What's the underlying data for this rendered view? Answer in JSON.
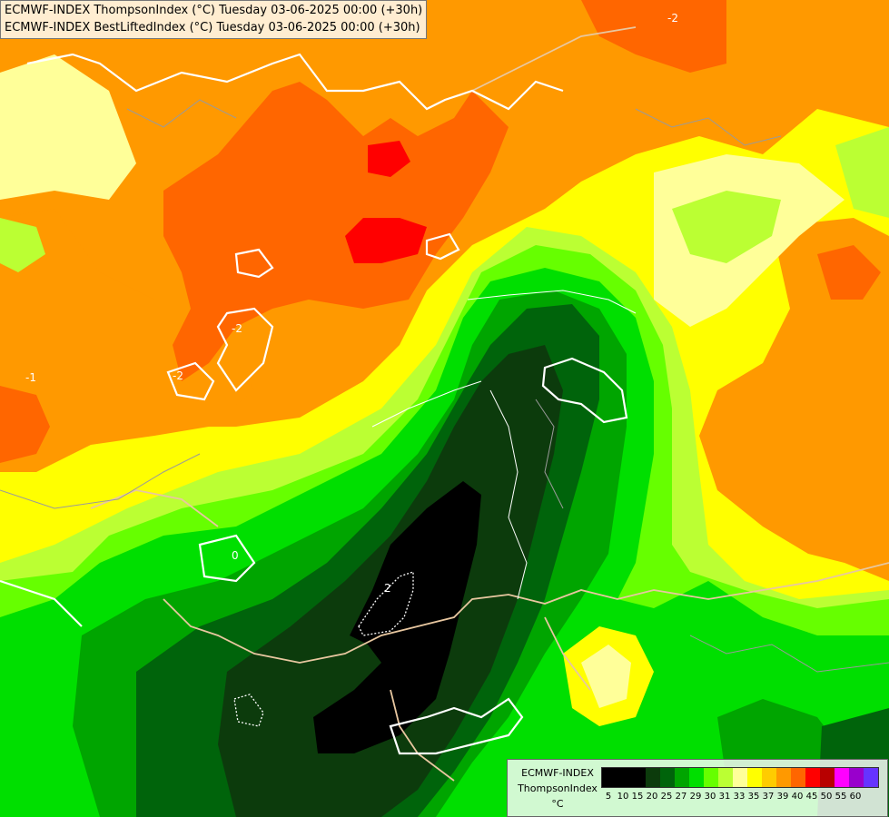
{
  "title": {
    "line1": "ECMWF-INDEX ThompsonIndex (°C) Tuesday 03-06-2025 00:00 (+30h)",
    "line2": "ECMWF-INDEX BestLiftedIndex (°C) Tuesday 03-06-2025 00:00 (+30h)"
  },
  "legend": {
    "model": "ECMWF-INDEX",
    "parameter": "ThompsonIndex",
    "unit": "°C",
    "labels": [
      "5",
      "10",
      "15",
      "20",
      "25",
      "27",
      "29",
      "30",
      "31",
      "33",
      "35",
      "37",
      "39",
      "40",
      "45",
      "50",
      "55",
      "60"
    ],
    "colors": [
      "#000000",
      "#000000",
      "#000000",
      "#0c3b0c",
      "#00640b",
      "#00a500",
      "#00df00",
      "#66ff00",
      "#bbff33",
      "#ffff99",
      "#ffff00",
      "#ffcc00",
      "#ff9900",
      "#ff6600",
      "#ff0000",
      "#b80000",
      "#ff00ff",
      "#9900cc",
      "#6633ff",
      "#0000ff"
    ]
  },
  "contour_labels": {
    "m2_a": "-2",
    "m2_b": "-2",
    "m2_c": "-2",
    "m1": "-1",
    "zero": "0",
    "two": "2"
  }
}
